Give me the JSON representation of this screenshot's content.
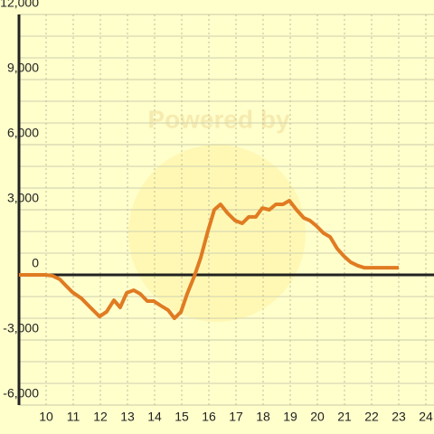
{
  "chart_data": {
    "type": "line",
    "watermark": "Powered by",
    "x": [
      9,
      9.97,
      10.23,
      10.5,
      10.7,
      10.97,
      11.3,
      11.63,
      11.97,
      12.23,
      12.5,
      12.73,
      12.97,
      13.23,
      13.47,
      13.73,
      13.97,
      14.23,
      14.5,
      14.73,
      14.97,
      15.2,
      15.47,
      15.7,
      15.97,
      16.2,
      16.43,
      16.7,
      16.97,
      17.23,
      17.47,
      17.73,
      17.97,
      18.23,
      18.47,
      18.73,
      18.97,
      19.23,
      19.5,
      19.73,
      19.97,
      20.23,
      20.47,
      20.73,
      20.97,
      21.23,
      21.5,
      21.73,
      23
    ],
    "series": [
      {
        "color": "#e07b22",
        "values": [
          0,
          0,
          -40,
          -200,
          -460,
          -800,
          -1080,
          -1500,
          -1920,
          -1700,
          -1170,
          -1500,
          -830,
          -710,
          -875,
          -1210,
          -1210,
          -1420,
          -1625,
          -2000,
          -1710,
          -875,
          -40,
          790,
          2040,
          3000,
          3250,
          2830,
          2500,
          2375,
          2670,
          2670,
          3080,
          3000,
          3250,
          3250,
          3420,
          3000,
          2625,
          2500,
          2250,
          1920,
          1750,
          1210,
          875,
          580,
          420,
          330,
          330
        ]
      }
    ],
    "xlim": [
      9,
      24.3
    ],
    "xticks": [
      10,
      11,
      12,
      13,
      14,
      15,
      16,
      17,
      18,
      19,
      20,
      21,
      22,
      23,
      24
    ],
    "ylim": [
      -6000,
      12000
    ],
    "yticks": [
      {
        "value": -6000,
        "label": "-6,000"
      },
      {
        "value": -3000,
        "label": "-3,000"
      },
      0,
      {
        "value": 3000,
        "label": "3,000"
      },
      {
        "value": 6000,
        "label": "6,000"
      },
      {
        "value": 9000,
        "label": "9,000"
      },
      {
        "value": 12000,
        "label": "12,000"
      }
    ],
    "y_minor_ticks": [
      -5000,
      -4000,
      -2000,
      -1000,
      1000,
      2000,
      4000,
      5000,
      7000,
      8000,
      10000,
      11000
    ],
    "grid": true
  }
}
